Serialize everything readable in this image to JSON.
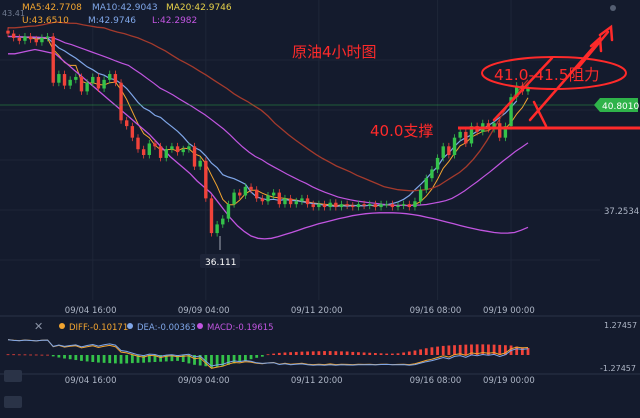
{
  "header": {
    "ma5": "MA5:42.7708",
    "ma10": "MA10:42.9043",
    "ma20": "MA20:42.9746",
    "upper": "U:43.6510",
    "mid": "M:42.9746",
    "lower": "L:42.2982",
    "corner_tick": "43.41"
  },
  "annotations": {
    "title": "原油4小时图",
    "resistance": "41.0-41.5阻力",
    "support": "40.0支撑"
  },
  "price_axis": {
    "current_price": "40.8010",
    "mid_label": "37.2534",
    "low_marker": "36.111"
  },
  "macd_panel": {
    "diff": "DIFF:-0.10171",
    "dea": "DEA:-0.00363",
    "macd": "MACD:-0.19615",
    "axis_top": "1.27457",
    "axis_bottom": "-1.27457",
    "close_icon": "close-icon"
  },
  "time_labels": [
    "09/04 16:00",
    "09/09 04:00",
    "09/11 20:00",
    "09/16 08:00",
    "09/19 00:00"
  ],
  "colors": {
    "background": "#141b2d",
    "up": "#34c24a",
    "down": "#f0433a",
    "annotation": "#ff2a2a",
    "ma5": "#f3a530",
    "ma10": "#7fa6e8",
    "ma20": "#c155e0",
    "band": "#a43a2c",
    "price_tag": "#2fb34a"
  },
  "chart_data": {
    "type": "candlestick",
    "y_range": [
      35.3,
      43.6
    ],
    "x_count": 93,
    "time_ticks": [
      {
        "index": 15,
        "label": "09/04 16:00"
      },
      {
        "index": 35,
        "label": "09/09 04:00"
      },
      {
        "index": 55,
        "label": "09/11 20:00"
      },
      {
        "index": 76,
        "label": "09/16 08:00"
      },
      {
        "index": 89,
        "label": "09/19 00:00"
      }
    ],
    "current_price": 40.801,
    "marked_low": 36.111,
    "support": 40.0,
    "resistance": [
      41.0,
      41.5
    ],
    "closes": [
      43.2,
      43.05,
      42.95,
      43.1,
      43.0,
      42.9,
      43.05,
      43.1,
      41.5,
      41.8,
      41.4,
      41.6,
      41.7,
      41.2,
      41.5,
      41.7,
      41.3,
      41.6,
      41.8,
      41.5,
      40.2,
      40.0,
      39.6,
      39.2,
      39.0,
      39.4,
      39.3,
      38.9,
      39.2,
      39.3,
      39.1,
      39.2,
      39.3,
      38.6,
      38.8,
      37.5,
      36.3,
      36.6,
      36.8,
      37.3,
      37.7,
      37.6,
      37.9,
      37.8,
      37.5,
      37.4,
      37.6,
      37.7,
      37.3,
      37.5,
      37.3,
      37.4,
      37.5,
      37.3,
      37.2,
      37.3,
      37.2,
      37.35,
      37.2,
      37.3,
      37.25,
      37.2,
      37.3,
      37.25,
      37.3,
      37.2,
      37.3,
      37.3,
      37.2,
      37.25,
      37.3,
      37.2,
      37.4,
      37.8,
      38.2,
      38.5,
      38.9,
      39.3,
      39.0,
      39.6,
      39.8,
      39.4,
      40.0,
      39.8,
      40.1,
      39.9,
      40.1,
      39.6,
      40.0,
      41.0,
      41.4,
      41.2,
      41.3
    ],
    "series": [
      {
        "name": "MA5",
        "values": [
          43.1,
          43.1,
          43.08,
          43.06,
          43.06,
          43.0,
          43.03,
          43.03,
          42.65,
          42.45,
          42.2,
          42.1,
          42.1,
          41.55,
          41.48,
          41.5,
          41.44,
          41.42,
          41.5,
          41.52,
          41.26,
          40.92,
          40.5,
          40.08,
          39.74,
          39.6,
          39.34,
          39.18,
          39.18,
          39.2,
          39.14,
          39.24,
          39.22,
          39.04,
          38.96,
          38.7,
          38.3,
          37.92,
          37.46,
          37.28,
          37.28,
          37.44,
          37.66,
          37.78,
          37.78,
          37.68,
          37.6,
          37.54,
          37.52,
          37.5,
          37.46,
          37.44,
          37.4,
          37.38,
          37.34,
          37.32,
          37.3,
          37.28,
          37.25,
          37.27,
          37.26,
          37.26,
          37.25,
          37.25,
          37.26,
          37.23,
          37.27,
          37.27,
          37.26,
          37.25,
          37.27,
          37.25,
          37.29,
          37.39,
          37.58,
          37.82,
          38.16,
          38.54,
          38.78,
          39.06,
          39.32,
          39.42,
          39.62,
          39.72,
          39.82,
          39.84,
          39.98,
          39.9,
          39.92,
          40.12,
          40.42,
          40.64,
          40.98
        ]
      },
      {
        "name": "MA10",
        "values": [
          43.1,
          43.1,
          43.08,
          43.08,
          43.07,
          43.05,
          43.05,
          43.05,
          42.87,
          42.7,
          42.6,
          42.47,
          42.35,
          42.2,
          42.05,
          41.95,
          41.82,
          41.76,
          41.65,
          41.6,
          41.47,
          41.3,
          41.07,
          40.82,
          40.63,
          40.53,
          40.37,
          40.3,
          40.13,
          39.98,
          39.82,
          39.63,
          39.4,
          39.26,
          39.16,
          38.97,
          38.72,
          38.56,
          38.32,
          38.24,
          38.18,
          38.09,
          37.99,
          37.72,
          37.55,
          37.49,
          37.45,
          37.47,
          37.43,
          37.46,
          37.43,
          37.42,
          37.39,
          37.35,
          37.32,
          37.3,
          37.26,
          37.25,
          37.22,
          37.25,
          37.23,
          37.25,
          37.25,
          37.24,
          37.26,
          37.26,
          37.27,
          37.28,
          37.32,
          37.38,
          37.47,
          37.6,
          37.8,
          37.98,
          38.18,
          38.4,
          38.6,
          38.9,
          39.07,
          39.3,
          39.49,
          39.6,
          39.7,
          39.82,
          39.92,
          40.02,
          40.15,
          40.3,
          40.45,
          40.65,
          40.87
        ]
      },
      {
        "name": "MA20",
        "values": [
          43.1,
          43.1,
          43.09,
          43.08,
          43.08,
          43.07,
          43.06,
          43.06,
          42.98,
          42.88,
          42.82,
          42.74,
          42.66,
          42.58,
          42.5,
          42.42,
          42.34,
          42.25,
          42.17,
          42.1,
          41.95,
          41.8,
          41.64,
          41.48,
          41.31,
          41.2,
          41.08,
          40.94,
          40.81,
          40.68,
          40.54,
          40.4,
          40.24,
          40.07,
          39.9,
          39.7,
          39.48,
          39.28,
          39.1,
          38.95,
          38.84,
          38.7,
          38.58,
          38.46,
          38.34,
          38.23,
          38.12,
          38.02,
          37.9,
          37.8,
          37.71,
          37.63,
          37.55,
          37.5,
          37.45,
          37.41,
          37.38,
          37.35,
          37.33,
          37.3,
          37.28,
          37.26,
          37.26,
          37.25,
          37.26,
          37.27,
          37.29,
          37.33,
          37.37,
          37.42,
          37.5,
          37.62,
          37.76,
          37.92,
          38.08,
          38.25,
          38.42,
          38.6,
          38.78,
          38.95,
          39.12,
          39.27,
          39.42
        ]
      },
      {
        "name": "Upper",
        "values": [
          43.4,
          43.4,
          43.42,
          43.45,
          43.46,
          43.5,
          43.55,
          43.6,
          43.58,
          43.56,
          43.55,
          43.5,
          43.46,
          43.42,
          43.4,
          43.32,
          43.25,
          43.2,
          43.12,
          43.05,
          42.95,
          42.85,
          42.72,
          42.6,
          42.45,
          42.3,
          42.18,
          42.05,
          41.9,
          41.76,
          41.6,
          41.45,
          41.3,
          41.12,
          40.98,
          40.85,
          40.7,
          40.55,
          40.35,
          40.1,
          39.9,
          39.7,
          39.52,
          39.35,
          39.18,
          39.02,
          38.88,
          38.75,
          38.62,
          38.52,
          38.42,
          38.3,
          38.2,
          38.1,
          38.0,
          37.9,
          37.85,
          37.8,
          37.78,
          37.76,
          37.78,
          37.8,
          37.85,
          37.95,
          38.1,
          38.25,
          38.4,
          38.6,
          38.85,
          39.15,
          39.5,
          39.9,
          40.3,
          40.7,
          41.05,
          41.35,
          41.6
        ]
      },
      {
        "name": "Lower",
        "values": [
          42.5,
          42.5,
          42.55,
          42.6,
          42.65,
          42.6,
          42.55,
          42.5,
          42.3,
          42.1,
          41.9,
          41.7,
          41.5,
          41.3,
          41.1,
          40.9,
          40.7,
          40.5,
          40.3,
          40.1,
          39.9,
          39.7,
          39.45,
          39.2,
          38.95,
          38.75,
          38.55,
          38.35,
          38.1,
          37.9,
          37.7,
          37.4,
          37.1,
          36.8,
          36.55,
          36.35,
          36.2,
          36.12,
          36.1,
          36.12,
          36.18,
          36.25,
          36.32,
          36.4,
          36.48,
          36.55,
          36.62,
          36.68,
          36.74,
          36.8,
          36.85,
          36.9,
          36.94,
          36.97,
          36.99,
          37.0,
          37.0,
          37.0,
          36.99,
          36.97,
          36.94,
          36.9,
          36.85,
          36.8,
          36.74,
          36.68,
          36.62,
          36.56,
          36.5,
          36.45,
          36.4,
          36.36,
          36.32,
          36.3,
          36.3,
          36.32,
          36.4,
          36.5
        ]
      }
    ],
    "macd_hist": [
      0.05,
      0.05,
      0.04,
      0.04,
      0.03,
      0.03,
      0.02,
      0.02,
      -0.1,
      -0.18,
      -0.25,
      -0.3,
      -0.36,
      -0.42,
      -0.46,
      -0.5,
      -0.54,
      -0.56,
      -0.58,
      -0.6,
      -0.62,
      -0.6,
      -0.58,
      -0.56,
      -0.55,
      -0.52,
      -0.5,
      -0.48,
      -0.46,
      -0.44,
      -0.42,
      -0.5,
      -0.6,
      -0.7,
      -0.75,
      -0.8,
      -0.9,
      -0.85,
      -0.78,
      -0.7,
      -0.6,
      -0.5,
      -0.4,
      -0.3,
      -0.2,
      -0.12,
      0.05,
      0.1,
      0.15,
      0.18,
      0.2,
      0.22,
      0.24,
      0.25,
      0.26,
      0.27,
      0.28,
      0.28,
      0.27,
      0.26,
      0.25,
      0.22,
      0.2,
      0.18,
      0.16,
      0.14,
      0.12,
      0.1,
      0.1,
      0.12,
      0.18,
      0.25,
      0.32,
      0.4,
      0.48,
      0.55,
      0.6,
      0.65,
      0.68,
      0.7,
      0.72,
      0.74,
      0.75,
      0.76,
      0.76,
      0.75,
      0.74,
      0.72,
      0.7,
      0.68,
      0.6,
      0.55,
      0.5
    ]
  }
}
